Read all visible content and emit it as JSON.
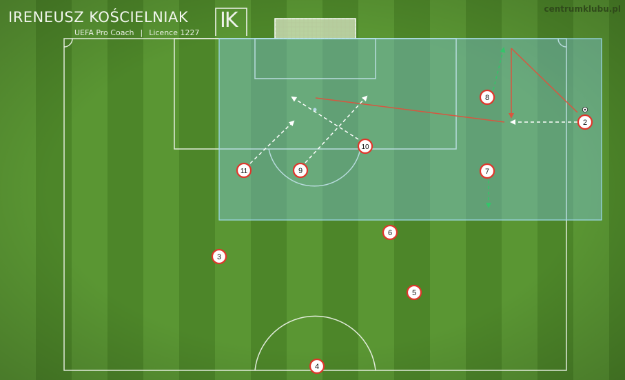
{
  "header": {
    "coach_name": "IRENEUSZ KOŚCIELNIAK",
    "coach_title": "UEFA Pro Coach",
    "separator": "|",
    "licence": "Licence 1227",
    "logo_letters": "IK",
    "website": "centrumklubu.pl"
  },
  "colors": {
    "grass_light": "#5f9b36",
    "grass_dark": "#4d8629",
    "lines": "#f2f6ee",
    "zone_fill": "#7fc6e0",
    "zone_border": "#9fdcef",
    "player_ring": "#e0352b",
    "player_fill": "#ffffff",
    "arrow_white": "#ffffff",
    "arrow_red": "#d9553f",
    "arrow_green": "#34c46a"
  },
  "players": [
    {
      "number": "2"
    },
    {
      "number": "3"
    },
    {
      "number": "4"
    },
    {
      "number": "5"
    },
    {
      "number": "6"
    },
    {
      "number": "7"
    },
    {
      "number": "8"
    },
    {
      "number": "9"
    },
    {
      "number": "10"
    },
    {
      "number": "11"
    }
  ]
}
